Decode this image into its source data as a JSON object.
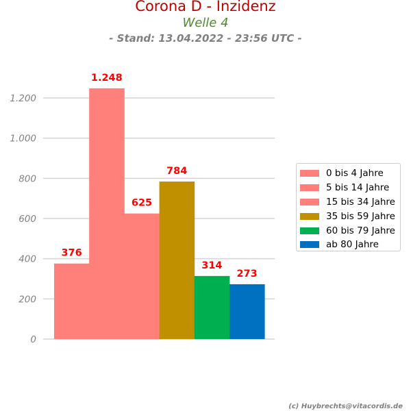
{
  "header": {
    "title": "Corona D - Inzidenz",
    "subtitle": "Welle 4",
    "stand": "- Stand: 13.04.2022 - 23:56 UTC -"
  },
  "credit": "(c) Huybrechts@vitacordis.de",
  "chart_data": {
    "type": "bar",
    "title": "Corona D - Inzidenz",
    "ylim": [
      0,
      1300
    ],
    "yticks": [
      0,
      200,
      400,
      600,
      800,
      1000,
      1200
    ],
    "ytick_labels": [
      "0",
      "200",
      "400",
      "600",
      "800",
      "1.000",
      "1.200"
    ],
    "grid": true,
    "legend_position": "right",
    "series": [
      {
        "name": "0 bis 4 Jahre",
        "value": 376,
        "label": "376",
        "color": "#ff7f7a"
      },
      {
        "name": "5 bis 14 Jahre",
        "value": 1248,
        "label": "1.248",
        "color": "#ff7f7a"
      },
      {
        "name": "15 bis 34 Jahre",
        "value": 625,
        "label": "625",
        "color": "#ff7f7a"
      },
      {
        "name": "35 bis 59 Jahre",
        "value": 784,
        "label": "784",
        "color": "#c09000"
      },
      {
        "name": "60 bis 79 Jahre",
        "value": 314,
        "label": "314",
        "color": "#00b050"
      },
      {
        "name": "ab 80 Jahre",
        "value": 273,
        "label": "273",
        "color": "#0070c0"
      }
    ],
    "label_color": "#ff0000"
  }
}
